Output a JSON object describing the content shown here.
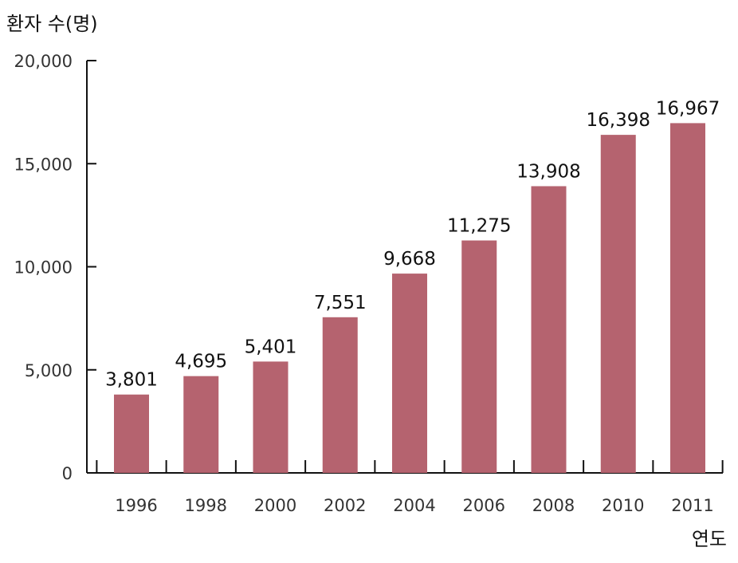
{
  "chart_data": {
    "type": "bar",
    "title": "",
    "ylabel": "환자 수(명)",
    "xlabel": "연도",
    "categories": [
      "1996",
      "1998",
      "2000",
      "2002",
      "2004",
      "2006",
      "2008",
      "2010",
      "2011"
    ],
    "values": [
      3801,
      4695,
      5401,
      7551,
      9668,
      11275,
      13908,
      16398,
      16967
    ],
    "value_labels": [
      "3,801",
      "4,695",
      "5,401",
      "7,551",
      "9,668",
      "11,275",
      "13,908",
      "16,398",
      "16,967"
    ],
    "ylim": [
      0,
      20000
    ],
    "yticks": [
      0,
      5000,
      10000,
      15000,
      20000
    ],
    "ytick_labels": [
      "0",
      "5,000",
      "10,000",
      "15,000",
      "20,000"
    ],
    "bar_color": "#b5636f",
    "axis_color": "#111111",
    "grid": false,
    "legend": "none"
  }
}
